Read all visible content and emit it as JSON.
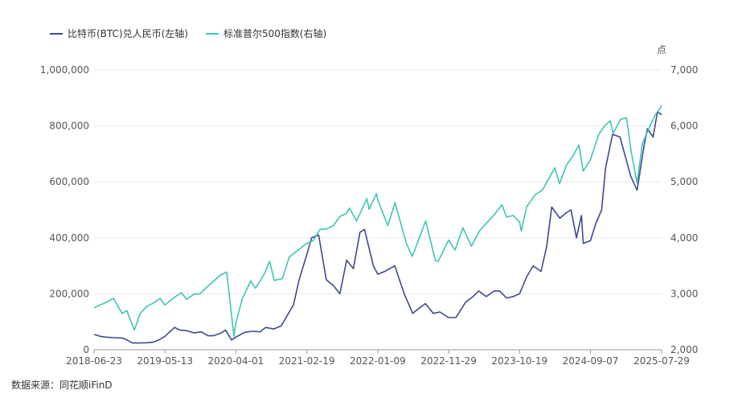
{
  "legend": [
    {
      "name": "比特币(BTC)兑人民币(左轴)",
      "color": "#3d4a8f"
    },
    {
      "name": "标准普尔500指数(右轴)",
      "color": "#40c4b4"
    }
  ],
  "footer": "数据来源：同花顺iFinD",
  "chart_data": {
    "type": "line",
    "title": "",
    "y_left": {
      "label": "",
      "ticks": [
        "0",
        "200,000",
        "400,000",
        "600,000",
        "800,000",
        "1,000,000"
      ],
      "range": [
        0,
        1000000
      ]
    },
    "y_right": {
      "label": "点",
      "ticks": [
        "2,000",
        "3,000",
        "4,000",
        "5,000",
        "6,000",
        "7,000"
      ],
      "range": [
        2000,
        7000
      ]
    },
    "x_ticks": [
      "2018-06-23",
      "2019-05-13",
      "2020-04-01",
      "2021-02-19",
      "2022-01-09",
      "2022-11-29",
      "2023-10-19",
      "2024-09-07",
      "2025-07-29"
    ],
    "x_range": [
      "2018-06-23",
      "2025-07-29"
    ],
    "grid": true,
    "series": [
      {
        "name": "比特币(BTC)兑人民币(左轴)",
        "axis": "left",
        "color": "#3d4a8f",
        "points": [
          [
            "2018-06-23",
            55000
          ],
          [
            "2018-07-20",
            48000
          ],
          [
            "2018-08-15",
            45000
          ],
          [
            "2018-09-20",
            43000
          ],
          [
            "2018-10-30",
            42000
          ],
          [
            "2018-11-20",
            35000
          ],
          [
            "2018-12-15",
            24000
          ],
          [
            "2019-01-20",
            24000
          ],
          [
            "2019-02-20",
            25000
          ],
          [
            "2019-03-20",
            27000
          ],
          [
            "2019-04-15",
            35000
          ],
          [
            "2019-05-13",
            48000
          ],
          [
            "2019-06-26",
            80000
          ],
          [
            "2019-07-20",
            70000
          ],
          [
            "2019-08-20",
            68000
          ],
          [
            "2019-09-25",
            60000
          ],
          [
            "2019-10-26",
            64000
          ],
          [
            "2019-11-25",
            50000
          ],
          [
            "2019-12-20",
            50000
          ],
          [
            "2020-01-20",
            58000
          ],
          [
            "2020-02-14",
            70000
          ],
          [
            "2020-03-12",
            35000
          ],
          [
            "2020-04-01",
            45000
          ],
          [
            "2020-05-10",
            62000
          ],
          [
            "2020-06-15",
            66000
          ],
          [
            "2020-07-20",
            64000
          ],
          [
            "2020-08-15",
            80000
          ],
          [
            "2020-09-20",
            74000
          ],
          [
            "2020-10-25",
            85000
          ],
          [
            "2020-11-20",
            120000
          ],
          [
            "2020-12-20",
            160000
          ],
          [
            "2021-01-15",
            250000
          ],
          [
            "2021-02-19",
            340000
          ],
          [
            "2021-03-13",
            400000
          ],
          [
            "2021-04-14",
            410000
          ],
          [
            "2021-05-19",
            250000
          ],
          [
            "2021-06-20",
            230000
          ],
          [
            "2021-07-20",
            200000
          ],
          [
            "2021-08-20",
            320000
          ],
          [
            "2021-09-20",
            290000
          ],
          [
            "2021-10-20",
            420000
          ],
          [
            "2021-11-10",
            430000
          ],
          [
            "2021-12-20",
            300000
          ],
          [
            "2022-01-09",
            270000
          ],
          [
            "2022-02-10",
            280000
          ],
          [
            "2022-03-28",
            300000
          ],
          [
            "2022-05-10",
            200000
          ],
          [
            "2022-06-18",
            130000
          ],
          [
            "2022-07-20",
            150000
          ],
          [
            "2022-08-15",
            165000
          ],
          [
            "2022-09-20",
            130000
          ],
          [
            "2022-10-20",
            135000
          ],
          [
            "2022-11-29",
            115000
          ],
          [
            "2023-01-01",
            115000
          ],
          [
            "2023-02-15",
            170000
          ],
          [
            "2023-03-20",
            190000
          ],
          [
            "2023-04-15",
            210000
          ],
          [
            "2023-05-20",
            190000
          ],
          [
            "2023-06-25",
            210000
          ],
          [
            "2023-07-20",
            210000
          ],
          [
            "2023-08-20",
            185000
          ],
          [
            "2023-09-20",
            190000
          ],
          [
            "2023-10-19",
            200000
          ],
          [
            "2023-11-20",
            260000
          ],
          [
            "2023-12-20",
            300000
          ],
          [
            "2024-01-25",
            280000
          ],
          [
            "2024-02-20",
            370000
          ],
          [
            "2024-03-14",
            510000
          ],
          [
            "2024-04-20",
            470000
          ],
          [
            "2024-05-20",
            490000
          ],
          [
            "2024-06-10",
            500000
          ],
          [
            "2024-07-05",
            400000
          ],
          [
            "2024-07-28",
            480000
          ],
          [
            "2024-08-05",
            380000
          ],
          [
            "2024-09-07",
            390000
          ],
          [
            "2024-10-01",
            450000
          ],
          [
            "2024-10-28",
            500000
          ],
          [
            "2024-11-15",
            650000
          ],
          [
            "2024-12-17",
            770000
          ],
          [
            "2025-01-20",
            760000
          ],
          [
            "2025-02-10",
            700000
          ],
          [
            "2025-03-10",
            620000
          ],
          [
            "2025-04-08",
            570000
          ],
          [
            "2025-05-10",
            730000
          ],
          [
            "2025-05-25",
            790000
          ],
          [
            "2025-06-20",
            760000
          ],
          [
            "2025-07-10",
            850000
          ],
          [
            "2025-07-29",
            840000
          ]
        ]
      },
      {
        "name": "标准普尔500指数(右轴)",
        "axis": "right",
        "color": "#40c4b4",
        "points": [
          [
            "2018-06-23",
            2750
          ],
          [
            "2018-07-20",
            2800
          ],
          [
            "2018-08-20",
            2850
          ],
          [
            "2018-09-20",
            2920
          ],
          [
            "2018-10-29",
            2650
          ],
          [
            "2018-11-20",
            2700
          ],
          [
            "2018-12-24",
            2350
          ],
          [
            "2019-01-20",
            2650
          ],
          [
            "2019-02-20",
            2780
          ],
          [
            "2019-03-20",
            2830
          ],
          [
            "2019-04-20",
            2920
          ],
          [
            "2019-05-13",
            2800
          ],
          [
            "2019-06-30",
            2950
          ],
          [
            "2019-07-27",
            3020
          ],
          [
            "2019-08-20",
            2900
          ],
          [
            "2019-09-20",
            2990
          ],
          [
            "2019-10-20",
            3000
          ],
          [
            "2019-11-20",
            3120
          ],
          [
            "2019-12-20",
            3220
          ],
          [
            "2020-01-20",
            3330
          ],
          [
            "2020-02-19",
            3390
          ],
          [
            "2020-03-23",
            2240
          ],
          [
            "2020-04-01",
            2480
          ],
          [
            "2020-04-29",
            2900
          ],
          [
            "2020-06-08",
            3230
          ],
          [
            "2020-06-30",
            3100
          ],
          [
            "2020-08-10",
            3360
          ],
          [
            "2020-09-02",
            3580
          ],
          [
            "2020-09-23",
            3240
          ],
          [
            "2020-10-30",
            3270
          ],
          [
            "2020-12-01",
            3660
          ],
          [
            "2020-12-31",
            3750
          ],
          [
            "2021-02-19",
            3900
          ],
          [
            "2021-03-20",
            3950
          ],
          [
            "2021-04-20",
            4150
          ],
          [
            "2021-05-20",
            4160
          ],
          [
            "2021-06-20",
            4220
          ],
          [
            "2021-07-20",
            4380
          ],
          [
            "2021-08-20",
            4440
          ],
          [
            "2021-09-02",
            4530
          ],
          [
            "2021-10-04",
            4300
          ],
          [
            "2021-11-20",
            4700
          ],
          [
            "2021-12-01",
            4510
          ],
          [
            "2022-01-03",
            4790
          ],
          [
            "2022-01-09",
            4680
          ],
          [
            "2022-02-24",
            4220
          ],
          [
            "2022-03-29",
            4630
          ],
          [
            "2022-05-20",
            3900
          ],
          [
            "2022-06-16",
            3670
          ],
          [
            "2022-08-16",
            4300
          ],
          [
            "2022-09-30",
            3590
          ],
          [
            "2022-10-12",
            3580
          ],
          [
            "2022-11-29",
            3960
          ],
          [
            "2022-12-28",
            3780
          ],
          [
            "2023-02-02",
            4180
          ],
          [
            "2023-03-13",
            3850
          ],
          [
            "2023-04-20",
            4130
          ],
          [
            "2023-06-20",
            4390
          ],
          [
            "2023-07-31",
            4590
          ],
          [
            "2023-08-20",
            4370
          ],
          [
            "2023-09-20",
            4400
          ],
          [
            "2023-10-19",
            4280
          ],
          [
            "2023-10-27",
            4120
          ],
          [
            "2023-11-20",
            4550
          ],
          [
            "2023-12-29",
            4770
          ],
          [
            "2024-01-31",
            4850
          ],
          [
            "2024-03-28",
            5250
          ],
          [
            "2024-04-19",
            4970
          ],
          [
            "2024-05-20",
            5300
          ],
          [
            "2024-06-20",
            5470
          ],
          [
            "2024-07-16",
            5660
          ],
          [
            "2024-08-05",
            5190
          ],
          [
            "2024-09-07",
            5400
          ],
          [
            "2024-10-15",
            5850
          ],
          [
            "2024-11-11",
            6000
          ],
          [
            "2024-12-06",
            6090
          ],
          [
            "2024-12-20",
            5870
          ],
          [
            "2025-01-23",
            6120
          ],
          [
            "2025-02-19",
            6140
          ],
          [
            "2025-03-13",
            5520
          ],
          [
            "2025-04-08",
            4980
          ],
          [
            "2025-05-02",
            5680
          ],
          [
            "2025-06-06",
            6000
          ],
          [
            "2025-06-30",
            6200
          ],
          [
            "2025-07-20",
            6300
          ],
          [
            "2025-07-29",
            6370
          ]
        ]
      }
    ]
  }
}
